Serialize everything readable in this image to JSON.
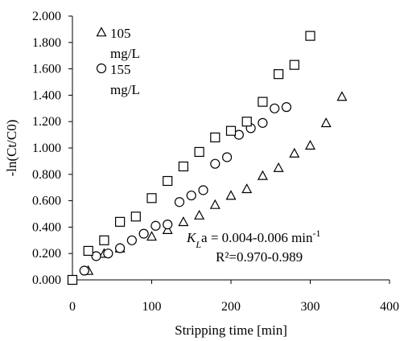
{
  "chart_data": {
    "type": "scatter",
    "title": "",
    "xlabel": "Stripping time [min]",
    "ylabel": "-ln(Ct/C0)",
    "xlim": [
      0,
      400
    ],
    "ylim": [
      0,
      2.0
    ],
    "x_ticks": [
      "0",
      "100",
      "200",
      "300",
      "400"
    ],
    "y_ticks": [
      "0.000",
      "0.200",
      "0.400",
      "0.600",
      "0.800",
      "1.000",
      "1.200",
      "1.400",
      "1.600",
      "1.800",
      "2.000"
    ],
    "grid": false,
    "legend_placement": "top-left",
    "legend": [
      {
        "marker": "triangle",
        "label_line1": "105",
        "label_line2": "mg/L"
      },
      {
        "marker": "circle",
        "label_line1": "155",
        "label_line2": "mg/L"
      }
    ],
    "series": [
      {
        "marker": "triangle",
        "points": [
          [
            0,
            0.0
          ],
          [
            20,
            0.07
          ],
          [
            40,
            0.2
          ],
          [
            60,
            0.24
          ],
          [
            100,
            0.33
          ],
          [
            120,
            0.38
          ],
          [
            140,
            0.44
          ],
          [
            160,
            0.49
          ],
          [
            180,
            0.57
          ],
          [
            200,
            0.64
          ],
          [
            220,
            0.69
          ],
          [
            240,
            0.79
          ],
          [
            260,
            0.85
          ],
          [
            280,
            0.96
          ],
          [
            300,
            1.02
          ],
          [
            320,
            1.19
          ],
          [
            340,
            1.39
          ]
        ]
      },
      {
        "marker": "circle",
        "points": [
          [
            0,
            0.0
          ],
          [
            15,
            0.07
          ],
          [
            30,
            0.18
          ],
          [
            45,
            0.2
          ],
          [
            60,
            0.24
          ],
          [
            75,
            0.3
          ],
          [
            90,
            0.35
          ],
          [
            105,
            0.41
          ],
          [
            120,
            0.42
          ],
          [
            135,
            0.59
          ],
          [
            150,
            0.64
          ],
          [
            165,
            0.68
          ],
          [
            180,
            0.88
          ],
          [
            195,
            0.93
          ],
          [
            210,
            1.1
          ],
          [
            225,
            1.15
          ],
          [
            240,
            1.19
          ],
          [
            255,
            1.3
          ],
          [
            270,
            1.31
          ]
        ]
      },
      {
        "marker": "square",
        "points": [
          [
            0,
            0.0
          ],
          [
            20,
            0.22
          ],
          [
            40,
            0.3
          ],
          [
            60,
            0.44
          ],
          [
            80,
            0.48
          ],
          [
            100,
            0.62
          ],
          [
            120,
            0.75
          ],
          [
            140,
            0.86
          ],
          [
            160,
            0.97
          ],
          [
            180,
            1.08
          ],
          [
            200,
            1.13
          ],
          [
            220,
            1.2
          ],
          [
            240,
            1.35
          ],
          [
            260,
            1.56
          ],
          [
            280,
            1.63
          ],
          [
            300,
            1.85
          ]
        ]
      }
    ],
    "annotation": {
      "kla_prefix": "K",
      "kla_sub": "L",
      "kla_suffix": "a = 0.004-0.006 min",
      "kla_sup": "-1",
      "r2": "R²=0.970-0.989"
    }
  }
}
